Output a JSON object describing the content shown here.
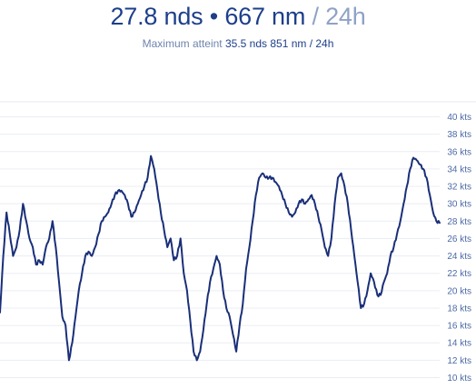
{
  "header": {
    "speed": "27.8 nds",
    "separator": " • ",
    "distance": "667 nm",
    "period": " / 24h",
    "max_label": "Maximum atteint ",
    "max_value": "35.5 nds 851 nm / 24h"
  },
  "colors": {
    "primary": "#1d3f8a",
    "muted": "#8fa2c6",
    "line": "#1a2f78",
    "grid": "#e9edf4"
  },
  "chart_data": {
    "type": "line",
    "title": "",
    "xlabel": "",
    "ylabel": "",
    "ylim": [
      10,
      40
    ],
    "grid": true,
    "y_ticks": [
      10,
      12,
      14,
      16,
      18,
      20,
      22,
      24,
      26,
      28,
      30,
      32,
      34,
      36,
      38,
      40
    ],
    "y_tick_labels": [
      "10 kts",
      "12 kts",
      "14 kts",
      "16 kts",
      "18 kts",
      "20 kts",
      "22 kts",
      "24 kts",
      "26 kts",
      "28 kts",
      "30 kts",
      "32 kts",
      "34 kts",
      "36 kts",
      "38 kts",
      "40 kts"
    ],
    "series": [
      {
        "values": [
          17.5,
          24,
          29,
          26.5,
          24,
          25,
          27,
          30,
          28,
          26,
          25,
          23,
          23.5,
          23,
          25,
          26,
          28,
          25,
          21,
          17,
          16,
          12,
          14,
          17,
          20,
          22,
          24,
          24.5,
          24,
          25,
          26.5,
          28,
          28.5,
          29,
          30,
          31,
          31.5,
          31.5,
          31,
          30,
          28.5,
          29,
          30,
          31,
          32,
          33,
          35.5,
          34,
          31.5,
          29,
          27,
          25,
          26,
          23.5,
          24,
          26,
          22,
          20,
          16.5,
          13,
          12,
          13,
          15.5,
          18.5,
          21,
          22.5,
          24,
          23,
          20,
          18,
          17,
          15,
          13,
          16,
          18.5,
          22.5,
          25,
          28,
          31,
          33,
          33.5,
          33,
          33,
          33,
          32.5,
          32,
          31,
          30,
          29,
          28.5,
          29,
          30,
          30.5,
          30,
          30.5,
          31,
          30,
          28.5,
          27,
          25,
          24,
          26,
          30,
          33,
          33.5,
          32,
          30,
          27,
          24,
          21,
          18,
          18.5,
          20,
          22,
          21,
          19.5,
          19.5,
          21,
          22,
          24,
          25,
          26.5,
          28,
          30,
          32,
          34,
          35.3,
          35,
          34.5,
          34,
          33,
          31,
          29,
          28,
          27.8
        ]
      }
    ]
  }
}
